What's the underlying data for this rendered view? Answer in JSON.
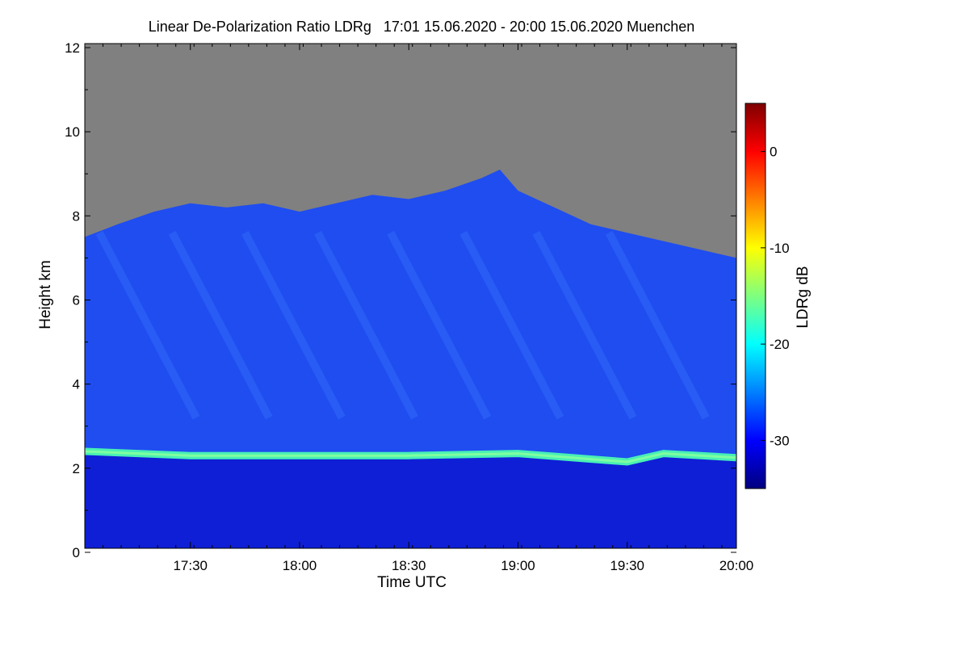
{
  "chart_data": {
    "type": "heatmap",
    "title": "Linear De-Polarization Ratio LDRg   17:01 15.06.2020 - 20:00 15.06.2020 Muenchen",
    "xlabel": "Time UTC",
    "ylabel": "Height km",
    "x_range": [
      "17:01",
      "20:00"
    ],
    "x_ticks": [
      "17:30",
      "18:00",
      "18:30",
      "19:00",
      "19:30",
      "20:00"
    ],
    "y_range_km": [
      0,
      12
    ],
    "y_ticks": [
      "0",
      "2",
      "4",
      "6",
      "8",
      "10",
      "12"
    ],
    "colorbar": {
      "label": "LDRg dB",
      "range_db": [
        -35,
        5
      ],
      "ticks": [
        "0",
        "-10",
        "-20",
        "-30"
      ],
      "colors": [
        "#00007f",
        "#0000ff",
        "#007fff",
        "#00ffff",
        "#7fff7f",
        "#ffff00",
        "#ff7f00",
        "#ff0000",
        "#7f0000"
      ]
    },
    "series": [
      {
        "name": "no-signal region (above cloud top)",
        "color": "#808080"
      },
      {
        "name": "cirrus cloud top height km",
        "x": [
          "17:01",
          "17:10",
          "17:20",
          "17:30",
          "17:40",
          "17:50",
          "18:00",
          "18:10",
          "18:20",
          "18:30",
          "18:40",
          "18:50",
          "18:55",
          "19:00",
          "19:10",
          "19:20",
          "19:30",
          "19:40",
          "19:50",
          "20:00"
        ],
        "values": [
          7.5,
          7.8,
          8.1,
          8.3,
          8.2,
          8.3,
          8.1,
          8.3,
          8.5,
          8.4,
          8.6,
          8.9,
          9.1,
          8.6,
          8.2,
          7.8,
          7.6,
          7.4,
          7.2,
          7.0
        ]
      },
      {
        "name": "melting layer / aerosol top height km",
        "x": [
          "17:01",
          "17:30",
          "18:00",
          "18:30",
          "19:00",
          "19:30",
          "19:40",
          "20:00"
        ],
        "values": [
          2.4,
          2.3,
          2.3,
          2.3,
          2.35,
          2.15,
          2.35,
          2.25
        ]
      }
    ]
  }
}
